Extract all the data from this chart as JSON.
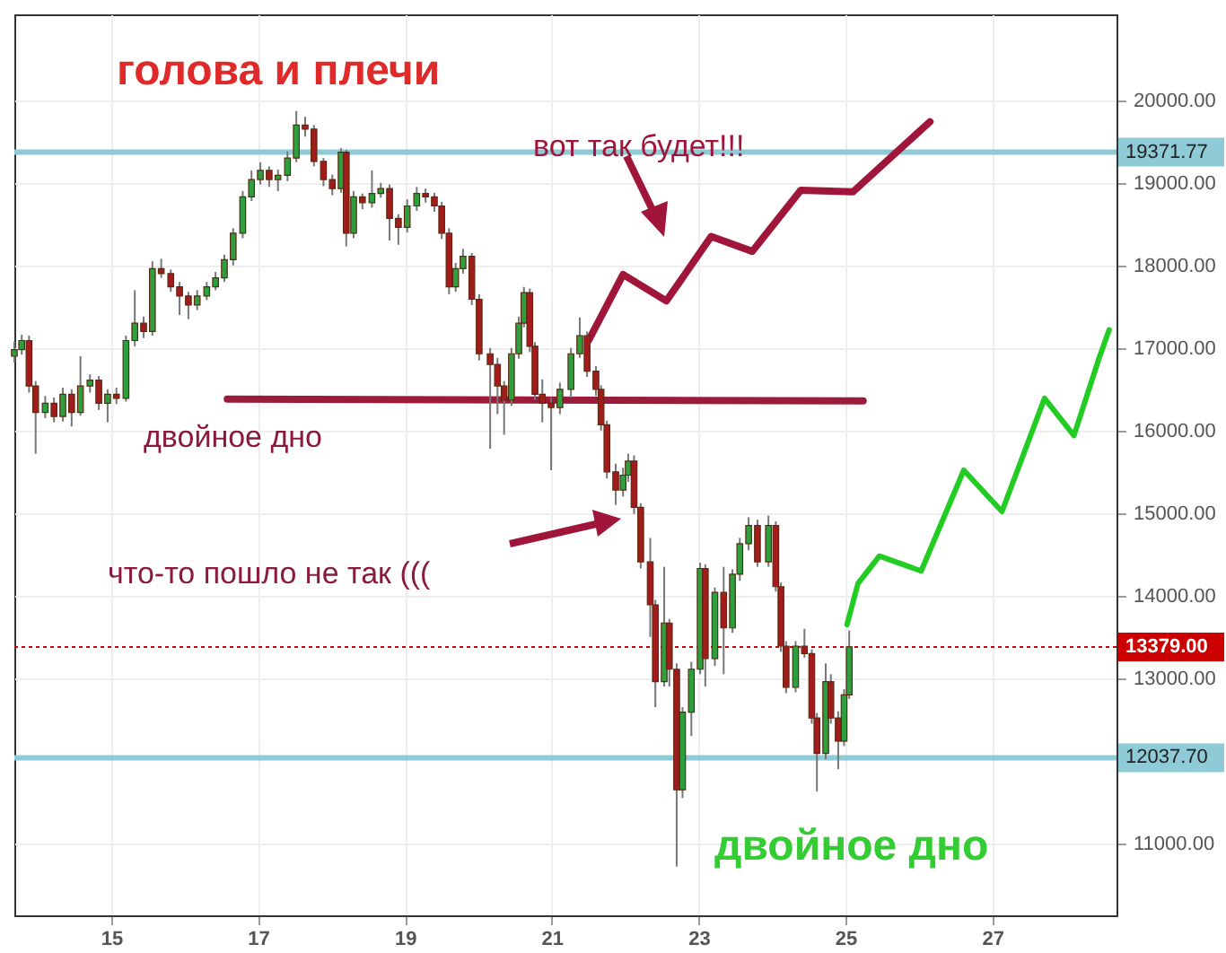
{
  "chart_data": {
    "type": "candlestick",
    "title": "голова и плечи",
    "annotations": [
      "вот так будет!!!",
      "двойное дно",
      "что-то пошло не так (((",
      "двойное дно"
    ],
    "x": [
      13.68,
      13.78,
      13.88,
      13.97,
      14.1,
      14.22,
      14.34,
      14.46,
      14.58,
      14.71,
      14.83,
      14.95,
      15.07,
      15.2,
      15.32,
      15.44,
      15.56,
      15.68,
      15.81,
      15.93,
      16.05,
      16.17,
      16.3,
      16.42,
      16.54,
      16.66,
      16.79,
      16.91,
      17.03,
      17.15,
      17.27,
      17.4,
      17.52,
      17.64,
      17.76,
      17.89,
      18.01,
      18.13,
      18.2,
      18.3,
      18.42,
      18.55,
      18.67,
      18.79,
      18.91,
      19.03,
      19.16,
      19.28,
      19.4,
      19.5,
      19.6,
      19.69,
      19.79,
      19.91,
      20.01,
      20.16,
      20.26,
      20.35,
      20.45,
      20.55,
      20.62,
      20.7,
      20.77,
      20.87,
      20.99,
      21.11,
      21.26,
      21.38,
      21.48,
      21.6,
      21.67,
      21.75,
      21.87,
      21.97,
      22.04,
      22.12,
      22.21,
      22.34,
      22.41,
      22.53,
      22.6,
      22.7,
      22.78,
      22.9,
      23.02,
      23.09,
      23.22,
      23.34,
      23.46,
      23.56,
      23.68,
      23.8,
      23.95,
      24.05,
      24.12,
      24.19,
      24.32,
      24.44,
      24.54,
      24.61,
      24.73,
      24.8,
      24.9,
      24.98,
      25.05
    ],
    "ohlc": [
      [
        16900,
        17080,
        16820,
        16980
      ],
      [
        16980,
        17160,
        16920,
        17090
      ],
      [
        17090,
        17150,
        16460,
        16540
      ],
      [
        16540,
        16600,
        15720,
        16220
      ],
      [
        16220,
        16420,
        16150,
        16330
      ],
      [
        16330,
        16400,
        16100,
        16170
      ],
      [
        16170,
        16520,
        16110,
        16440
      ],
      [
        16440,
        16500,
        16050,
        16220
      ],
      [
        16220,
        16900,
        16180,
        16540
      ],
      [
        16540,
        16680,
        16460,
        16610
      ],
      [
        16610,
        16660,
        16250,
        16330
      ],
      [
        16330,
        16500,
        16100,
        16440
      ],
      [
        16440,
        16520,
        16320,
        16390
      ],
      [
        16390,
        17150,
        16350,
        17090
      ],
      [
        17090,
        17700,
        17020,
        17300
      ],
      [
        17300,
        17380,
        17120,
        17200
      ],
      [
        17200,
        18050,
        17150,
        17960
      ],
      [
        17960,
        18080,
        17850,
        17900
      ],
      [
        17900,
        17950,
        17680,
        17740
      ],
      [
        17740,
        17800,
        17400,
        17630
      ],
      [
        17630,
        17680,
        17350,
        17520
      ],
      [
        17520,
        17700,
        17460,
        17630
      ],
      [
        17630,
        17800,
        17580,
        17740
      ],
      [
        17740,
        17920,
        17700,
        17850
      ],
      [
        17850,
        18130,
        17800,
        18070
      ],
      [
        18070,
        18450,
        18000,
        18390
      ],
      [
        18390,
        18900,
        18330,
        18830
      ],
      [
        18830,
        19150,
        18780,
        19040
      ],
      [
        19040,
        19250,
        18980,
        19150
      ],
      [
        19150,
        19200,
        18950,
        19040
      ],
      [
        19040,
        19160,
        18900,
        19090
      ],
      [
        19090,
        19380,
        19020,
        19300
      ],
      [
        19300,
        19870,
        19250,
        19700
      ],
      [
        19700,
        19800,
        19560,
        19650
      ],
      [
        19650,
        19700,
        19200,
        19260
      ],
      [
        19260,
        19300,
        18960,
        19040
      ],
      [
        19040,
        19100,
        18850,
        18930
      ],
      [
        18930,
        19420,
        18880,
        19370
      ],
      [
        19370,
        19400,
        18230,
        18390
      ],
      [
        18390,
        18900,
        18330,
        18830
      ],
      [
        18830,
        18870,
        18680,
        18760
      ],
      [
        18760,
        19150,
        18700,
        18870
      ],
      [
        18870,
        19000,
        18820,
        18930
      ],
      [
        18930,
        18980,
        18300,
        18570
      ],
      [
        18570,
        18620,
        18250,
        18460
      ],
      [
        18460,
        18800,
        18400,
        18720
      ],
      [
        18720,
        18950,
        18660,
        18870
      ],
      [
        18870,
        18930,
        18760,
        18830
      ],
      [
        18830,
        18880,
        18650,
        18720
      ],
      [
        18720,
        18770,
        18320,
        18390
      ],
      [
        18390,
        18450,
        17650,
        17740
      ],
      [
        17740,
        18030,
        17680,
        17960
      ],
      [
        17960,
        18200,
        17900,
        18110
      ],
      [
        18110,
        18150,
        17520,
        17590
      ],
      [
        17590,
        17650,
        16850,
        16930
      ],
      [
        16930,
        17000,
        15780,
        16800
      ],
      [
        16800,
        16880,
        16200,
        16540
      ],
      [
        16540,
        16600,
        15950,
        16370
      ],
      [
        16370,
        17000,
        16300,
        16930
      ],
      [
        16930,
        17380,
        16870,
        17300
      ],
      [
        17300,
        17740,
        17250,
        17670
      ],
      [
        17670,
        17720,
        16950,
        17020
      ],
      [
        17020,
        17070,
        16370,
        16440
      ],
      [
        16440,
        16620,
        16100,
        16330
      ],
      [
        16330,
        16400,
        15520,
        16280
      ],
      [
        16280,
        16580,
        16200,
        16500
      ],
      [
        16500,
        17000,
        16400,
        16930
      ],
      [
        16930,
        17370,
        16880,
        17150
      ],
      [
        17150,
        17200,
        16650,
        16720
      ],
      [
        16720,
        16780,
        16420,
        16500
      ],
      [
        16500,
        16550,
        16000,
        16070
      ],
      [
        16070,
        16120,
        15420,
        15500
      ],
      [
        15500,
        15600,
        15100,
        15280
      ],
      [
        15280,
        15550,
        15200,
        15460
      ],
      [
        15460,
        15720,
        15380,
        15630
      ],
      [
        15630,
        15700,
        14990,
        15070
      ],
      [
        15070,
        15120,
        14330,
        14410
      ],
      [
        14410,
        14700,
        13500,
        13890
      ],
      [
        13890,
        13950,
        12650,
        12960
      ],
      [
        12960,
        14350,
        12900,
        13670
      ],
      [
        13670,
        13720,
        12900,
        13110
      ],
      [
        13110,
        13180,
        10720,
        11650
      ],
      [
        11650,
        12650,
        11550,
        12590
      ],
      [
        12590,
        13200,
        12300,
        13110
      ],
      [
        13110,
        14400,
        13050,
        14330
      ],
      [
        14330,
        14380,
        12900,
        13240
      ],
      [
        13240,
        14100,
        13150,
        14040
      ],
      [
        14040,
        14350,
        13050,
        13610
      ],
      [
        13610,
        14320,
        13550,
        14260
      ],
      [
        14260,
        14700,
        14180,
        14630
      ],
      [
        14630,
        14950,
        14550,
        14850
      ],
      [
        14850,
        14920,
        14350,
        14410
      ],
      [
        14410,
        14970,
        14350,
        14850
      ],
      [
        14850,
        14900,
        14050,
        14110
      ],
      [
        14110,
        14160,
        13320,
        13390
      ],
      [
        13390,
        13450,
        12820,
        12890
      ],
      [
        12890,
        13450,
        12830,
        13390
      ],
      [
        13390,
        13600,
        13250,
        13300
      ],
      [
        13300,
        13350,
        12450,
        12520
      ],
      [
        12520,
        12580,
        11630,
        12090
      ],
      [
        12090,
        13180,
        12020,
        12960
      ],
      [
        12960,
        13050,
        12450,
        12520
      ],
      [
        12520,
        12600,
        11900,
        12240
      ],
      [
        12240,
        12870,
        12180,
        12800
      ],
      [
        12800,
        13580,
        12750,
        13380
      ]
    ],
    "series": [
      {
        "type": "line",
        "color": "#a0163a",
        "x": [
          21.5,
          21.97,
          22.56,
          23.17,
          23.73,
          24.39,
          25.1,
          26.15
        ],
        "values": [
          17090,
          17890,
          17570,
          18350,
          18170,
          18910,
          18890,
          19740
        ]
      },
      {
        "type": "line",
        "color": "#22cc22",
        "x": [
          25.02,
          25.17,
          25.46,
          26.03,
          26.61,
          27.13,
          27.71,
          28.11,
          28.45,
          28.59
        ],
        "values": [
          13650,
          14150,
          14480,
          14300,
          15520,
          15020,
          16390,
          15940,
          16870,
          17220
        ]
      },
      {
        "type": "line",
        "color": "#9b1b3a",
        "x": [
          16.58,
          25.24
        ],
        "values": [
          16380,
          16360
        ]
      }
    ],
    "ref_lines": [
      {
        "axis": "y",
        "value": 19371.77,
        "label": "19371.77",
        "color": "#8ecbd6",
        "line_style": "solid"
      },
      {
        "axis": "y",
        "value": 12037.7,
        "label": "12037.70",
        "color": "#8ecbd6",
        "line_style": "solid"
      },
      {
        "axis": "y",
        "value": 13379,
        "label": "13379.00",
        "color": "#cc0000",
        "line_style": "dotted"
      }
    ],
    "xlim": [
      13.68,
      28.69
    ],
    "xticks": [
      15,
      17,
      19,
      21,
      23,
      25,
      27
    ],
    "ylim": [
      10130,
      21040
    ],
    "yticks": [
      {
        "value": 11000,
        "label": "11000.00"
      },
      {
        "value": 13000,
        "label": "13000.00"
      },
      {
        "value": 14000,
        "label": "14000.00"
      },
      {
        "value": 15000,
        "label": "15000.00"
      },
      {
        "value": 16000,
        "label": "16000.00"
      },
      {
        "value": 17000,
        "label": "17000.00"
      },
      {
        "value": 18000,
        "label": "18000.00"
      },
      {
        "value": 19000,
        "label": "19000.00"
      },
      {
        "value": 20000,
        "label": "20000.00"
      }
    ],
    "grid": true
  }
}
